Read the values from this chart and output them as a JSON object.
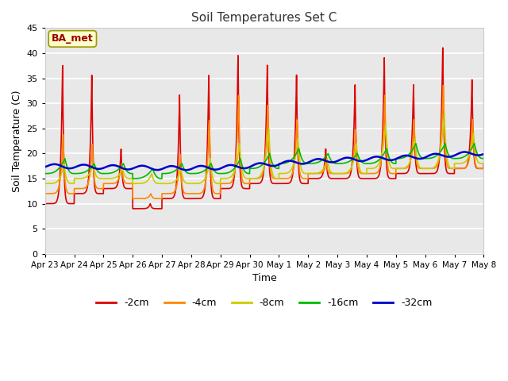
{
  "title": "Soil Temperatures Set C",
  "xlabel": "Time",
  "ylabel": "Soil Temperature (C)",
  "ylim": [
    0,
    45
  ],
  "yticks": [
    0,
    5,
    10,
    15,
    20,
    25,
    30,
    35,
    40,
    45
  ],
  "fig_facecolor": "#ffffff",
  "plot_bg_color": "#e8e8e8",
  "legend_label": "BA_met",
  "series_colors": {
    "-2cm": "#dd0000",
    "-4cm": "#ff8800",
    "-8cm": "#cccc00",
    "-16cm": "#00bb00",
    "-32cm": "#0000cc"
  },
  "date_labels": [
    "Apr 23",
    "Apr 24",
    "Apr 25",
    "Apr 26",
    "Apr 27",
    "Apr 28",
    "Apr 29",
    "Apr 30",
    "May 1",
    "May 2",
    "May 3",
    "May 4",
    "May 5",
    "May 6",
    "May 7",
    "May 8"
  ],
  "num_days": 16,
  "points_per_day": 288
}
